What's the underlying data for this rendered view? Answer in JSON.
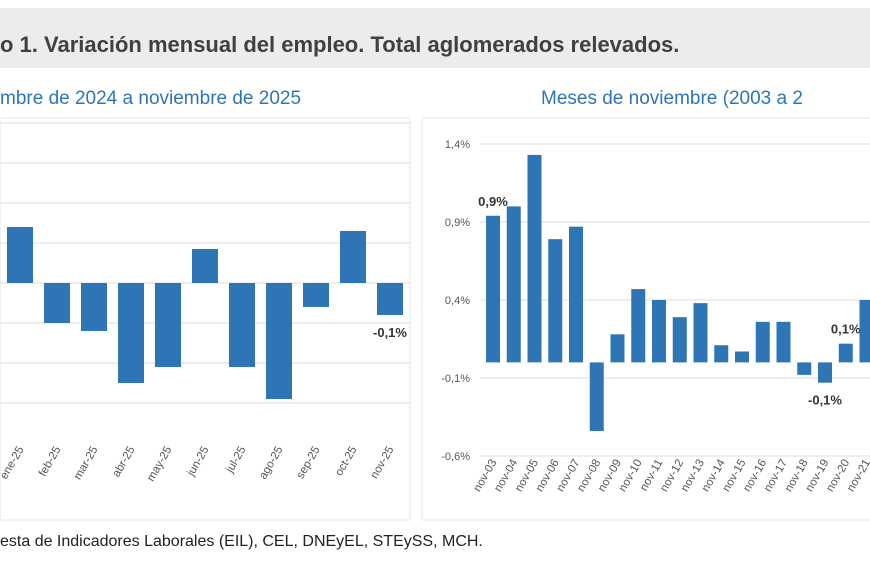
{
  "title": "o 1. Variación mensual del empleo. Total aglomerados relevados.",
  "source": "esta de Indicadores Laborales (EIL), CEL, DNEyEL, STEySS, MCH.",
  "chart_data": [
    {
      "type": "bar",
      "subtitle": "mbre de 2024 a noviembre de 2025",
      "color": "#2e75b6",
      "grid": true,
      "categories": [
        "ene-25",
        "feb-25",
        "mar-25",
        "abr-25",
        "may-25",
        "jun-25",
        "jul-25",
        "ago-25",
        "sep-25",
        "oct-25",
        "nov-25"
      ],
      "values": [
        0.14,
        -0.1,
        -0.12,
        -0.25,
        -0.21,
        0.085,
        -0.21,
        -0.29,
        -0.06,
        0.13,
        -0.08
      ],
      "value_labels": [
        null,
        null,
        null,
        null,
        null,
        null,
        null,
        null,
        null,
        null,
        "-0,1%"
      ],
      "ylim": [
        -0.4,
        0.4
      ],
      "yticks": [
        -0.3,
        -0.2,
        -0.1,
        0,
        0.1,
        0.2,
        0.3,
        0.4
      ]
    },
    {
      "type": "bar",
      "subtitle": "Meses de noviembre (2003 a 2",
      "color": "#2e75b6",
      "grid": true,
      "categories": [
        "nov-03",
        "nov-04",
        "nov-05",
        "nov-06",
        "nov-07",
        "nov-08",
        "nov-09",
        "nov-10",
        "nov-11",
        "nov-12",
        "nov-13",
        "nov-14",
        "nov-15",
        "nov-16",
        "nov-17",
        "nov-18",
        "nov-19",
        "nov-20",
        "nov-21"
      ],
      "values": [
        0.94,
        1.0,
        1.33,
        0.79,
        0.87,
        -0.44,
        0.18,
        0.47,
        0.4,
        0.29,
        0.38,
        0.11,
        0.07,
        0.26,
        0.26,
        -0.08,
        -0.13,
        0.12,
        0.4
      ],
      "value_labels": [
        "0,9%",
        null,
        null,
        null,
        null,
        null,
        null,
        null,
        null,
        null,
        null,
        null,
        null,
        null,
        null,
        null,
        "-0,1%",
        "0,1%",
        null
      ],
      "ylim": [
        -0.6,
        1.4
      ],
      "yticks": [
        {
          "value": -0.6,
          "label": "-0,6%"
        },
        {
          "value": -0.1,
          "label": "-0,1%"
        },
        {
          "value": 0.4,
          "label": "0,4%"
        },
        {
          "value": 0.9,
          "label": "0,9%"
        },
        {
          "value": 1.4,
          "label": "1,4%"
        }
      ]
    }
  ]
}
